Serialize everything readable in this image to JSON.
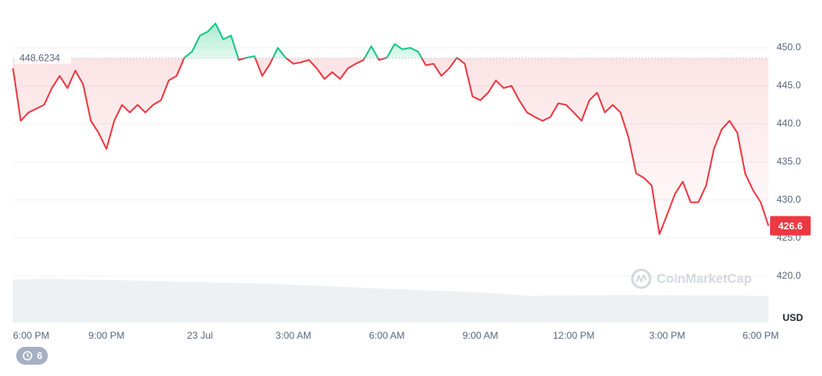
{
  "chart_data": {
    "type": "line",
    "categories": [
      "6:00 PM",
      null,
      null,
      null,
      null,
      null,
      null,
      null,
      null,
      null,
      null,
      null,
      "9:00 PM",
      null,
      null,
      null,
      null,
      null,
      null,
      null,
      null,
      null,
      null,
      null,
      "23 Jul",
      null,
      null,
      null,
      null,
      null,
      null,
      null,
      null,
      null,
      null,
      null,
      "3:00 AM",
      null,
      null,
      null,
      null,
      null,
      null,
      null,
      null,
      null,
      null,
      null,
      "6:00 AM",
      null,
      null,
      null,
      null,
      null,
      null,
      null,
      null,
      null,
      null,
      null,
      "9:00 AM",
      null,
      null,
      null,
      null,
      null,
      null,
      null,
      null,
      null,
      null,
      null,
      "12:00 PM",
      null,
      null,
      null,
      null,
      null,
      null,
      null,
      null,
      null,
      null,
      null,
      "3:00 PM",
      null,
      null,
      null,
      null,
      null,
      null,
      null,
      null,
      null,
      null,
      null,
      "6:00 PM",
      null
    ],
    "values": [
      447.3,
      440.4,
      441.5,
      442,
      442.5,
      444.7,
      446.3,
      444.7,
      447,
      445.2,
      440.4,
      438.8,
      436.7,
      440.4,
      442.5,
      441.5,
      442.5,
      441.5,
      442.5,
      443.1,
      445.7,
      446.3,
      448.7,
      449.5,
      451.6,
      452.1,
      453.2,
      451.1,
      451.6,
      448.4,
      448.7,
      448.9,
      446.3,
      447.9,
      450,
      448.7,
      447.9,
      448.1,
      448.4,
      447.3,
      445.9,
      446.8,
      445.9,
      447.3,
      447.9,
      448.4,
      450.2,
      448.4,
      448.7,
      450.5,
      449.8,
      450,
      449.5,
      447.7,
      447.9,
      446.3,
      447.3,
      448.7,
      447.9,
      443.6,
      443.1,
      444.1,
      445.7,
      444.7,
      445,
      443.1,
      441.5,
      440.9,
      440.4,
      440.9,
      442.7,
      442.5,
      441.5,
      440.4,
      443.1,
      444.1,
      441.5,
      442.5,
      441.5,
      438.3,
      433.5,
      432.9,
      431.9,
      425.5,
      428.1,
      430.8,
      432.4,
      429.7,
      429.7,
      431.9,
      436.7,
      439.3,
      440.4,
      438.8,
      433.5,
      431.3,
      429.7,
      426.6
    ],
    "color_up": "#16c784",
    "color_down": "#ea3943",
    "reference_value": 448.6234,
    "ylim": [
      414,
      455
    ],
    "yticks": [
      {
        "value": 420,
        "label": "420.0"
      },
      {
        "value": 425,
        "label": "425.0"
      },
      {
        "value": 430,
        "label": "430.0"
      },
      {
        "value": 435,
        "label": "435.0"
      },
      {
        "value": 440,
        "label": "440.0"
      },
      {
        "value": 445,
        "label": "445.0"
      },
      {
        "value": 450,
        "label": "450.0"
      }
    ],
    "grid": true,
    "currency": "USD",
    "watermark": "CoinMarketCap"
  },
  "history_badge": "6"
}
